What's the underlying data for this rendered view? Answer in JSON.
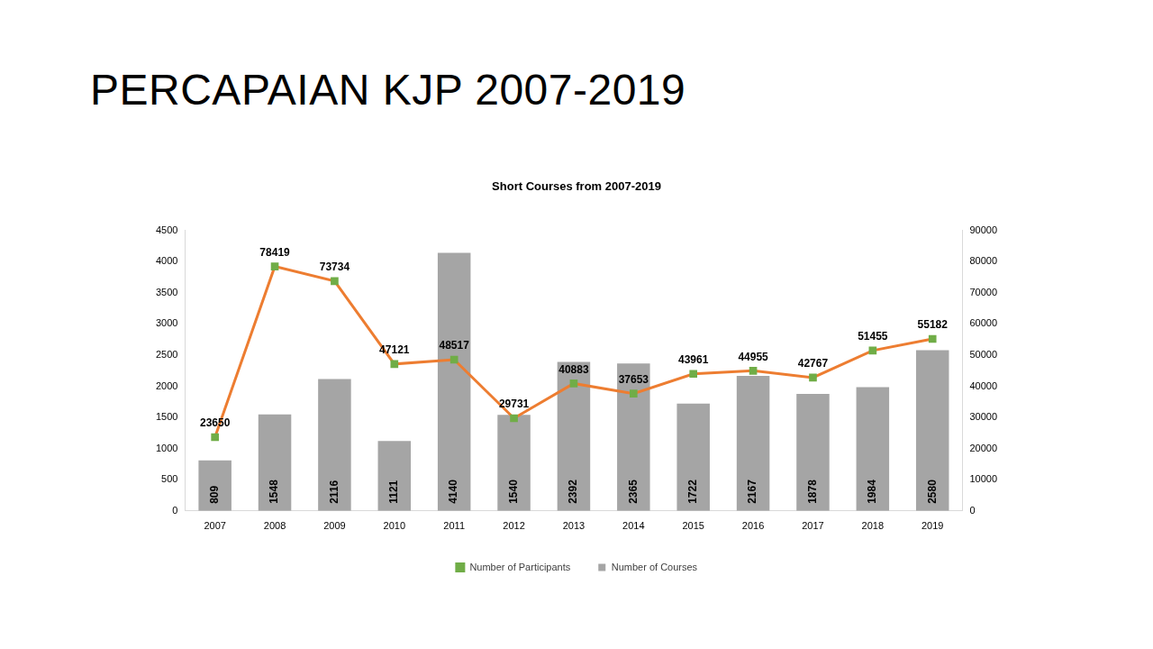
{
  "slide_title": "PERCAPAIAN KJP 2007-2019",
  "chart_data": {
    "type": "bar",
    "title": "Short Courses from 2007-2019",
    "categories": [
      "2007",
      "2008",
      "2009",
      "2010",
      "2011",
      "2012",
      "2013",
      "2014",
      "2015",
      "2016",
      "2017",
      "2018",
      "2019"
    ],
    "series": [
      {
        "name": "Number of Courses",
        "type": "bar",
        "color": "#a5a5a5",
        "values": [
          809,
          1548,
          2116,
          1121,
          4140,
          1540,
          2392,
          2365,
          1722,
          2167,
          1878,
          1984,
          2580
        ]
      },
      {
        "name": "Number of Participants",
        "type": "line",
        "color": "#ed7d31",
        "marker": "square",
        "axis": "y2",
        "values": [
          23650,
          78419,
          73734,
          47121,
          48517,
          29731,
          40883,
          37653,
          43961,
          44955,
          42767,
          51455,
          55182
        ]
      }
    ],
    "ylim": [
      0,
      4500
    ],
    "yticks": [
      0,
      500,
      1000,
      1500,
      2000,
      2500,
      3000,
      3500,
      4000,
      4500
    ],
    "y2lim": [
      0,
      90000
    ],
    "y2ticks": [
      0,
      10000,
      20000,
      30000,
      40000,
      50000,
      60000,
      70000,
      80000,
      90000
    ],
    "grid": false,
    "legend": "bottom",
    "data_labels": true
  }
}
